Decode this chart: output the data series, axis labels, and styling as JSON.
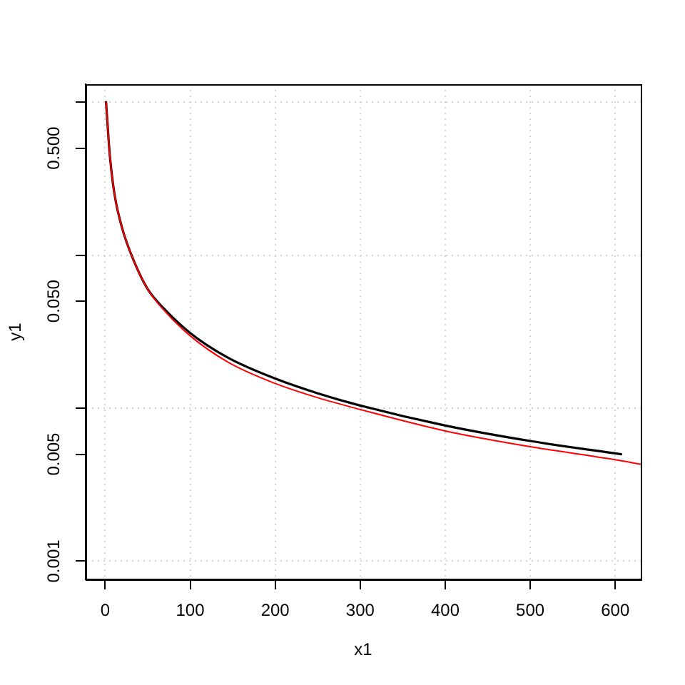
{
  "chart_data": {
    "type": "line",
    "xlabel": "x1",
    "ylabel": "y1",
    "series": [
      {
        "color": "#000000",
        "x": [
          1,
          2.8,
          3.9,
          5.6,
          11,
          20,
          34,
          50,
          67,
          100,
          145,
          200,
          250,
          300,
          400,
          500,
          607
        ],
        "values": [
          1.0,
          0.72,
          0.58,
          0.44,
          0.25,
          0.15,
          0.091,
          0.06,
          0.046,
          0.031,
          0.0213,
          0.0156,
          0.0125,
          0.0104,
          0.0077,
          0.0061,
          0.005
        ]
      },
      {
        "color": "#ff0000",
        "x": [
          1,
          2.8,
          3.9,
          5.6,
          11,
          20,
          34,
          50,
          67,
          100,
          145,
          200,
          250,
          300,
          400,
          500,
          600,
          630
        ],
        "values": [
          1.0,
          0.72,
          0.58,
          0.44,
          0.25,
          0.15,
          0.091,
          0.06,
          0.045,
          0.0297,
          0.0199,
          0.0145,
          0.0117,
          0.0098,
          0.0071,
          0.0056,
          0.0046,
          0.0043
        ]
      }
    ],
    "xlim": [
      -23,
      630
    ],
    "xticks": [
      0,
      100,
      200,
      300,
      400,
      500,
      600
    ],
    "ylim": [
      0.00076,
      1.31
    ],
    "yticks": [
      0.001,
      0.005,
      {
        "value": 0.01,
        "label": null
      },
      {
        "value": 0.05,
        "label": "0.050"
      },
      {
        "value": 0.1,
        "label": null
      },
      {
        "value": 0.5,
        "label": "0.500"
      },
      {
        "value": 1,
        "label": null
      }
    ],
    "log": "y",
    "grid": true
  }
}
